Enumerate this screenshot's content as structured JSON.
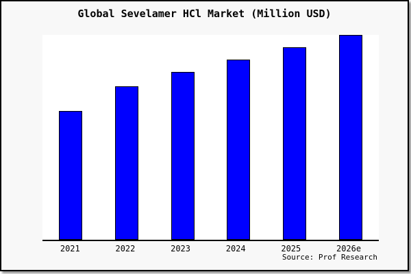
{
  "window": {
    "background": "#f8f8f8",
    "frame_border_color": "#000000"
  },
  "chart_data": {
    "type": "bar",
    "title": "Global Sevelamer HCl Market (Million USD)",
    "categories": [
      "2021",
      "2022",
      "2023",
      "2024",
      "2025",
      "2026e"
    ],
    "values": [
      63,
      75,
      82,
      88,
      94,
      100
    ],
    "value_units": "relative index (no y-axis labels shown; 2026e bar = 100)",
    "ylim": [
      0,
      100
    ],
    "xlabel": "",
    "ylabel": "",
    "grid": false,
    "legend": false,
    "source": "Source: Prof Research",
    "bar_color": "#0000FF",
    "bar_border_color": "#000000",
    "plot_background": "#ffffff",
    "axis_color": "#000000"
  }
}
